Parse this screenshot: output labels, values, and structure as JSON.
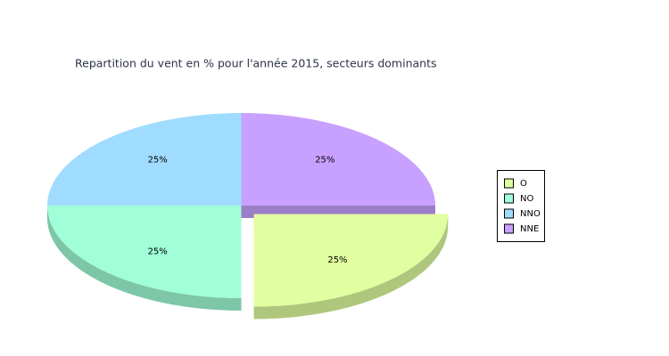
{
  "chart_data": {
    "type": "pie",
    "title": "Repartition du vent en % pour l'année 2015, secteurs dominants",
    "categories": [
      "O",
      "NO",
      "NNO",
      "NNE"
    ],
    "values": [
      25,
      25,
      25,
      25
    ],
    "value_labels": [
      "25%",
      "25%",
      "25%",
      "25%"
    ],
    "colors": [
      "#e0ffa0",
      "#a0ffd8",
      "#a0dcff",
      "#c8a0ff"
    ],
    "exploded": [
      true,
      false,
      false,
      false
    ],
    "legend": "right"
  }
}
